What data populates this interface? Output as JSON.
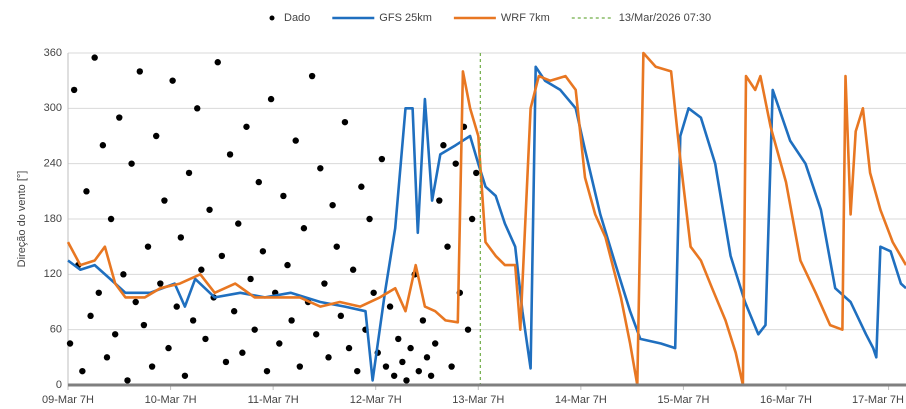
{
  "chart_data": {
    "type": "line",
    "y_label": "Direção do vento [°]",
    "xlim": [
      0,
      8.17
    ],
    "xticks": [
      {
        "value": 0,
        "label": "09-Mar 7H"
      },
      {
        "value": 1,
        "label": "10-Mar 7H"
      },
      {
        "value": 2,
        "label": "11-Mar 7H"
      },
      {
        "value": 3,
        "label": "12-Mar 7H"
      },
      {
        "value": 4,
        "label": "13-Mar 7H"
      },
      {
        "value": 5,
        "label": "14-Mar 7H"
      },
      {
        "value": 6,
        "label": "15-Mar 7H"
      },
      {
        "value": 7,
        "label": "16-Mar 7H"
      },
      {
        "value": 8,
        "label": "17-Mar 7H"
      }
    ],
    "ylim": [
      0,
      360
    ],
    "yticks": [
      0,
      60,
      120,
      180,
      240,
      300,
      360
    ],
    "grid": true,
    "legend": "top",
    "vline": {
      "x": 4.02,
      "label": "13/Mar/2026 07:30",
      "color": "#70ad47"
    },
    "series": [
      {
        "name": "Dado",
        "type": "scatter",
        "color": "#000000",
        "x": [
          0.02,
          0.06,
          0.1,
          0.14,
          0.18,
          0.22,
          0.26,
          0.3,
          0.34,
          0.38,
          0.42,
          0.46,
          0.5,
          0.54,
          0.58,
          0.62,
          0.66,
          0.7,
          0.74,
          0.78,
          0.82,
          0.86,
          0.9,
          0.94,
          0.98,
          1.02,
          1.06,
          1.1,
          1.14,
          1.18,
          1.22,
          1.26,
          1.3,
          1.34,
          1.38,
          1.42,
          1.46,
          1.5,
          1.54,
          1.58,
          1.62,
          1.66,
          1.7,
          1.74,
          1.78,
          1.82,
          1.86,
          1.9,
          1.94,
          1.98,
          2.02,
          2.06,
          2.1,
          2.14,
          2.18,
          2.22,
          2.26,
          2.3,
          2.34,
          2.38,
          2.42,
          2.46,
          2.5,
          2.54,
          2.58,
          2.62,
          2.66,
          2.7,
          2.74,
          2.78,
          2.82,
          2.86,
          2.9,
          2.94,
          2.98,
          3.02,
          3.06,
          3.1,
          3.14,
          3.18,
          3.22,
          3.26,
          3.3,
          3.34,
          3.38,
          3.42,
          3.46,
          3.5,
          3.54,
          3.58,
          3.62,
          3.66,
          3.7,
          3.74,
          3.78,
          3.82,
          3.86,
          3.9,
          3.94,
          3.98
        ],
        "values": [
          45,
          320,
          130,
          15,
          210,
          75,
          355,
          100,
          260,
          30,
          180,
          55,
          290,
          120,
          5,
          240,
          90,
          340,
          65,
          150,
          20,
          270,
          110,
          200,
          40,
          330,
          85,
          160,
          10,
          230,
          70,
          300,
          125,
          50,
          190,
          95,
          350,
          140,
          25,
          250,
          80,
          175,
          35,
          280,
          115,
          60,
          220,
          145,
          15,
          310,
          100,
          45,
          205,
          130,
          70,
          265,
          20,
          170,
          90,
          335,
          55,
          235,
          110,
          30,
          195,
          150,
          75,
          285,
          40,
          125,
          15,
          215,
          60,
          180,
          100,
          35,
          245,
          20,
          85,
          10,
          50,
          25,
          5,
          40,
          120,
          15,
          70,
          30,
          10,
          45,
          200,
          260,
          150,
          20,
          240,
          100,
          280,
          60,
          180,
          230
        ]
      },
      {
        "name": "GFS 25km",
        "color": "#1f6fbf",
        "x": [
          0,
          0.12,
          0.26,
          0.41,
          0.56,
          0.8,
          1.04,
          1.14,
          1.24,
          1.43,
          1.68,
          1.92,
          2.17,
          2.46,
          2.7,
          2.9,
          2.97,
          3.09,
          3.19,
          3.29,
          3.36,
          3.41,
          3.48,
          3.55,
          3.63,
          3.78,
          3.92,
          4.0,
          4.07,
          4.17,
          4.26,
          4.36,
          4.43,
          4.51,
          4.56,
          4.65,
          4.8,
          4.95,
          5.04,
          5.19,
          5.34,
          5.48,
          5.58,
          5.78,
          5.92,
          5.97,
          6.05,
          6.17,
          6.31,
          6.46,
          6.6,
          6.73,
          6.8,
          6.87,
          7.04,
          7.19,
          7.34,
          7.48,
          7.63,
          7.78,
          7.85,
          7.88,
          7.92,
          8.02,
          8.12,
          8.17
        ],
        "values": [
          135,
          125,
          130,
          115,
          100,
          100,
          110,
          85,
          115,
          95,
          100,
          95,
          100,
          90,
          85,
          80,
          5,
          100,
          170,
          300,
          300,
          165,
          310,
          200,
          250,
          260,
          270,
          240,
          215,
          205,
          175,
          150,
          80,
          18,
          345,
          330,
          320,
          300,
          255,
          185,
          130,
          80,
          50,
          45,
          40,
          270,
          300,
          290,
          240,
          140,
          90,
          55,
          65,
          320,
          265,
          240,
          190,
          105,
          90,
          55,
          40,
          30,
          150,
          145,
          110,
          105
        ]
      },
      {
        "name": "WRF 7km",
        "color": "#e87722",
        "x": [
          0,
          0.12,
          0.26,
          0.36,
          0.46,
          0.56,
          0.75,
          0.9,
          1.09,
          1.29,
          1.43,
          1.63,
          1.82,
          2.02,
          2.26,
          2.46,
          2.65,
          2.85,
          3.04,
          3.19,
          3.29,
          3.39,
          3.48,
          3.58,
          3.68,
          3.8,
          3.85,
          3.92,
          4.0,
          4.07,
          4.17,
          4.26,
          4.36,
          4.41,
          4.51,
          4.59,
          4.7,
          4.85,
          4.95,
          5.04,
          5.14,
          5.24,
          5.39,
          5.48,
          5.55,
          5.61,
          5.73,
          5.88,
          5.97,
          6.07,
          6.17,
          6.28,
          6.41,
          6.51,
          6.58,
          6.61,
          6.7,
          6.75,
          6.85,
          7.0,
          7.14,
          7.29,
          7.43,
          7.55,
          7.58,
          7.63,
          7.68,
          7.75,
          7.82,
          7.92,
          8.04,
          8.17
        ],
        "values": [
          155,
          130,
          135,
          150,
          110,
          95,
          95,
          105,
          110,
          120,
          100,
          110,
          95,
          95,
          95,
          85,
          90,
          85,
          95,
          105,
          80,
          130,
          85,
          80,
          70,
          68,
          340,
          300,
          270,
          155,
          140,
          130,
          130,
          60,
          300,
          335,
          330,
          335,
          320,
          225,
          185,
          160,
          95,
          45,
          0,
          360,
          345,
          340,
          245,
          150,
          135,
          105,
          70,
          35,
          0,
          335,
          320,
          335,
          280,
          220,
          135,
          100,
          65,
          60,
          335,
          185,
          275,
          300,
          230,
          190,
          155,
          130
        ]
      }
    ]
  }
}
